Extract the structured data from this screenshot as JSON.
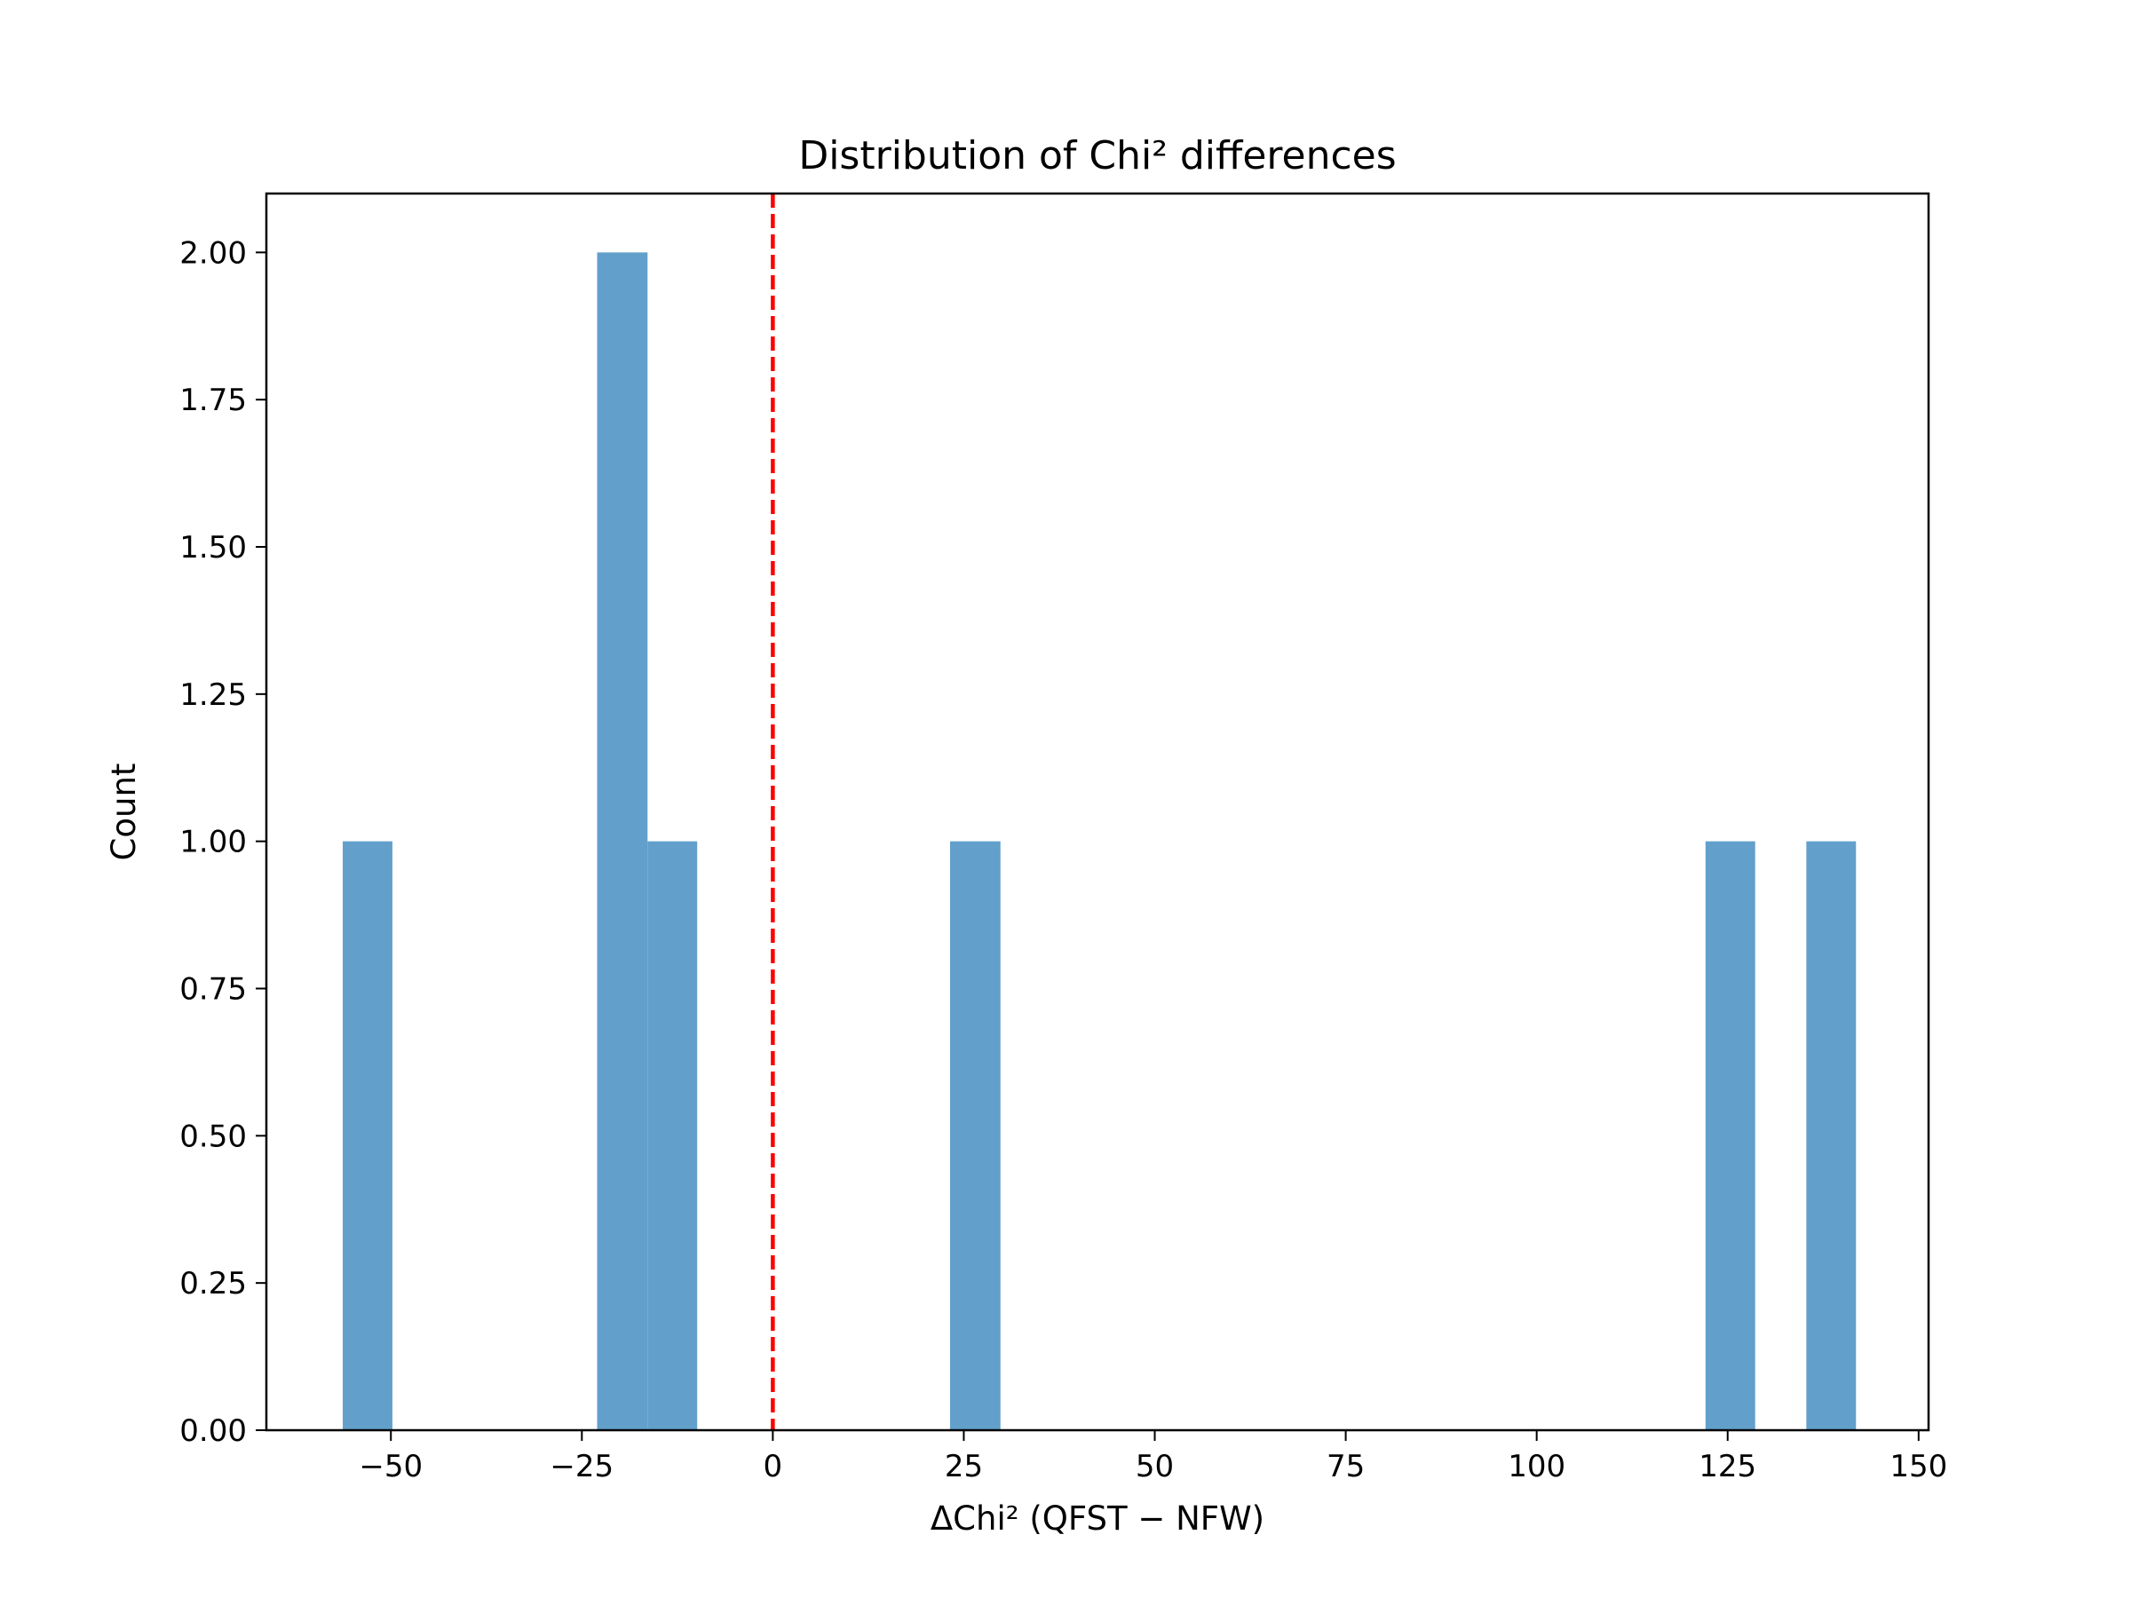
{
  "chart_data": {
    "type": "bar",
    "title": "Distribution of Chi² differences",
    "xlabel": "ΔChi² (QFST − NFW)",
    "ylabel": "Count",
    "xlim": [
      -66.3,
      151.3
    ],
    "ylim": [
      0,
      2.1
    ],
    "x_ticks": [
      -50,
      -25,
      0,
      25,
      50,
      75,
      100,
      125,
      150
    ],
    "x_tick_labels": [
      "−50",
      "−25",
      "0",
      "25",
      "50",
      "75",
      "100",
      "125",
      "150"
    ],
    "y_ticks": [
      0,
      0.25,
      0.5,
      0.75,
      1,
      1.25,
      1.5,
      1.75,
      2
    ],
    "y_tick_labels": [
      "0.00",
      "0.25",
      "0.50",
      "0.75",
      "1.00",
      "1.25",
      "1.50",
      "1.75",
      "2.00"
    ],
    "bar_color": "#62a0cb",
    "bins": [
      {
        "x0": -56.3,
        "x1": -49.8,
        "count": 1
      },
      {
        "x0": -23.0,
        "x1": -16.4,
        "count": 2
      },
      {
        "x0": -16.4,
        "x1": -9.9,
        "count": 1
      },
      {
        "x0": 23.2,
        "x1": 29.8,
        "count": 1
      },
      {
        "x0": 122.1,
        "x1": 128.6,
        "count": 1
      },
      {
        "x0": 135.3,
        "x1": 141.8,
        "count": 1
      }
    ],
    "reference_line": {
      "x": 0,
      "color": "#ff0000",
      "style": "dashed"
    },
    "grid": false,
    "legend": false
  }
}
